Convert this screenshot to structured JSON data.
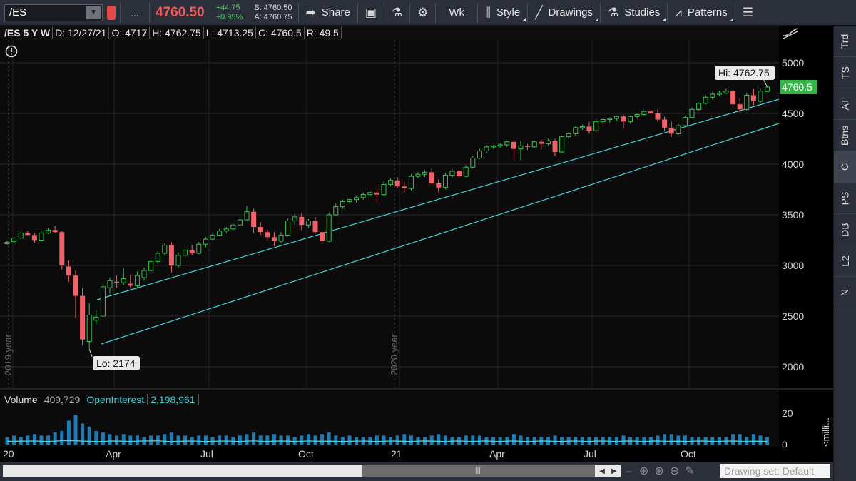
{
  "toolbar": {
    "symbol": "/ES",
    "more_label": "...",
    "last_price": "4760.50",
    "change": "+44.75",
    "change_pct": "+0.95%",
    "bid": "B: 4760.50",
    "ask": "A: 4760.75",
    "share_label": "Share",
    "timeframe_label": "Wk",
    "style_label": "Style",
    "drawings_label": "Drawings",
    "studies_label": "Studies",
    "patterns_label": "Patterns"
  },
  "header": {
    "symbol": "/ES 5 Y W",
    "date": "D: 12/27/21",
    "open": "O: 4717",
    "high": "H: 4762.75",
    "low": "L: 4713.25",
    "close": "C: 4760.5",
    "range": "R: 49.5"
  },
  "right_tabs": [
    "Trd",
    "TS",
    "AT",
    "Btns",
    "C",
    "PS",
    "DB",
    "L2",
    "N"
  ],
  "volume_header": {
    "volume_label": "Volume",
    "volume_value": "409,729",
    "oi_label": "OpenInterest",
    "oi_value": "2,198,961"
  },
  "bottom": {
    "drawing_set": "Drawing set: Default"
  },
  "colors": {
    "up": "#2fc74b",
    "down": "#f0616a",
    "channel": "#3fd0d8",
    "volume": "#1f7bb8",
    "oi_line": "#3fd0d8",
    "price_badge": "#36b44a"
  },
  "chart_data": {
    "type": "candlestick",
    "price_axis": {
      "ticks": [
        2000,
        2500,
        3000,
        3500,
        4000,
        4500,
        5000
      ],
      "range": [
        1900,
        5100
      ]
    },
    "x_labels": [
      "20",
      "Apr",
      "Jul",
      "Oct",
      "21",
      "Apr",
      "Jul",
      "Oct"
    ],
    "year_labels": [
      "2019 year",
      "2020 year"
    ],
    "annotations": {
      "high": "Hi: 4762.75",
      "low": "Lo: 2174",
      "last": "4760.5"
    },
    "volume_axis": {
      "ticks": [
        "20",
        "0"
      ],
      "unit": "<milli..."
    },
    "candles": [
      [
        3215,
        3245,
        3200,
        3230
      ],
      [
        3235,
        3280,
        3220,
        3270
      ],
      [
        3270,
        3335,
        3260,
        3320
      ],
      [
        3320,
        3340,
        3300,
        3300
      ],
      [
        3300,
        3320,
        3225,
        3250
      ],
      [
        3250,
        3335,
        3240,
        3320
      ],
      [
        3320,
        3370,
        3310,
        3350
      ],
      [
        3350,
        3390,
        3320,
        3330
      ],
      [
        3330,
        3340,
        2960,
        3000
      ],
      [
        2990,
        3050,
        2840,
        2900
      ],
      [
        2900,
        2950,
        2480,
        2700
      ],
      [
        2700,
        2780,
        2210,
        2270
      ],
      [
        2250,
        2630,
        2174,
        2510
      ],
      [
        2460,
        2560,
        2420,
        2490
      ],
      [
        2500,
        2840,
        2490,
        2790
      ],
      [
        2780,
        2880,
        2720,
        2850
      ],
      [
        2840,
        2900,
        2780,
        2830
      ],
      [
        2830,
        2970,
        2810,
        2870
      ],
      [
        2820,
        2910,
        2770,
        2800
      ],
      [
        2800,
        2940,
        2780,
        2900
      ],
      [
        2880,
        2980,
        2850,
        2950
      ],
      [
        2950,
        3060,
        2930,
        3040
      ],
      [
        3040,
        3140,
        3020,
        3120
      ],
      [
        3120,
        3220,
        3100,
        3200
      ],
      [
        3200,
        3230,
        2930,
        3000
      ],
      [
        3000,
        3130,
        2980,
        3100
      ],
      [
        3100,
        3180,
        3080,
        3150
      ],
      [
        3150,
        3200,
        3100,
        3120
      ],
      [
        3120,
        3230,
        3110,
        3210
      ],
      [
        3210,
        3280,
        3180,
        3260
      ],
      [
        3260,
        3320,
        3250,
        3300
      ],
      [
        3300,
        3360,
        3290,
        3340
      ],
      [
        3340,
        3380,
        3320,
        3360
      ],
      [
        3360,
        3420,
        3350,
        3400
      ],
      [
        3400,
        3460,
        3390,
        3450
      ],
      [
        3450,
        3590,
        3440,
        3530
      ],
      [
        3530,
        3560,
        3320,
        3380
      ],
      [
        3380,
        3430,
        3300,
        3330
      ],
      [
        3330,
        3360,
        3250,
        3280
      ],
      [
        3280,
        3330,
        3190,
        3240
      ],
      [
        3240,
        3330,
        3220,
        3300
      ],
      [
        3300,
        3460,
        3290,
        3440
      ],
      [
        3440,
        3510,
        3400,
        3480
      ],
      [
        3480,
        3520,
        3350,
        3400
      ],
      [
        3400,
        3460,
        3370,
        3440
      ],
      [
        3440,
        3480,
        3310,
        3330
      ],
      [
        3330,
        3350,
        3210,
        3240
      ],
      [
        3240,
        3520,
        3230,
        3500
      ],
      [
        3500,
        3610,
        3490,
        3580
      ],
      [
        3580,
        3650,
        3560,
        3630
      ],
      [
        3630,
        3660,
        3610,
        3650
      ],
      [
        3650,
        3690,
        3620,
        3670
      ],
      [
        3670,
        3720,
        3650,
        3700
      ],
      [
        3700,
        3740,
        3680,
        3720
      ],
      [
        3720,
        3780,
        3610,
        3700
      ],
      [
        3700,
        3830,
        3690,
        3800
      ],
      [
        3800,
        3860,
        3780,
        3840
      ],
      [
        3840,
        3870,
        3770,
        3780
      ],
      [
        3780,
        3830,
        3720,
        3760
      ],
      [
        3760,
        3900,
        3740,
        3880
      ],
      [
        3880,
        3920,
        3860,
        3900
      ],
      [
        3900,
        3940,
        3870,
        3920
      ],
      [
        3920,
        3960,
        3800,
        3810
      ],
      [
        3810,
        3850,
        3720,
        3770
      ],
      [
        3770,
        3910,
        3750,
        3890
      ],
      [
        3890,
        3950,
        3870,
        3930
      ],
      [
        3930,
        3970,
        3870,
        3880
      ],
      [
        3880,
        3990,
        3870,
        3970
      ],
      [
        3970,
        4080,
        3960,
        4060
      ],
      [
        4060,
        4150,
        4050,
        4130
      ],
      [
        4130,
        4190,
        4110,
        4170
      ],
      [
        4170,
        4190,
        4150,
        4180
      ],
      [
        4180,
        4210,
        4160,
        4190
      ],
      [
        4190,
        4230,
        4170,
        4220
      ],
      [
        4220,
        4240,
        4040,
        4150
      ],
      [
        4150,
        4230,
        4040,
        4180
      ],
      [
        4180,
        4200,
        4140,
        4170
      ],
      [
        4170,
        4230,
        4160,
        4220
      ],
      [
        4220,
        4240,
        4150,
        4200
      ],
      [
        4200,
        4250,
        4180,
        4230
      ],
      [
        4230,
        4250,
        4080,
        4120
      ],
      [
        4120,
        4280,
        4110,
        4270
      ],
      [
        4270,
        4320,
        4250,
        4300
      ],
      [
        4300,
        4380,
        4280,
        4360
      ],
      [
        4360,
        4390,
        4340,
        4370
      ],
      [
        4370,
        4420,
        4300,
        4330
      ],
      [
        4330,
        4440,
        4320,
        4420
      ],
      [
        4420,
        4450,
        4400,
        4440
      ],
      [
        4440,
        4460,
        4410,
        4450
      ],
      [
        4450,
        4480,
        4430,
        4470
      ],
      [
        4470,
        4490,
        4350,
        4420
      ],
      [
        4420,
        4480,
        4400,
        4470
      ],
      [
        4470,
        4500,
        4450,
        4490
      ],
      [
        4490,
        4530,
        4480,
        4520
      ],
      [
        4520,
        4540,
        4490,
        4500
      ],
      [
        4500,
        4540,
        4420,
        4440
      ],
      [
        4440,
        4470,
        4320,
        4360
      ],
      [
        4360,
        4420,
        4270,
        4300
      ],
      [
        4300,
        4400,
        4290,
        4380
      ],
      [
        4380,
        4480,
        4370,
        4460
      ],
      [
        4460,
        4560,
        4450,
        4540
      ],
      [
        4540,
        4610,
        4530,
        4600
      ],
      [
        4600,
        4680,
        4590,
        4660
      ],
      [
        4660,
        4710,
        4640,
        4690
      ],
      [
        4690,
        4720,
        4670,
        4700
      ],
      [
        4700,
        4740,
        4690,
        4720
      ],
      [
        4720,
        4740,
        4560,
        4590
      ],
      [
        4590,
        4650,
        4500,
        4540
      ],
      [
        4540,
        4700,
        4520,
        4680
      ],
      [
        4680,
        4740,
        4580,
        4620
      ],
      [
        4620,
        4740,
        4600,
        4720
      ],
      [
        4717,
        4762.75,
        4713.25,
        4760.5
      ]
    ],
    "volumes": [
      5,
      6,
      5,
      6,
      7,
      6,
      6,
      8,
      9,
      16,
      20,
      14,
      12,
      9,
      8,
      7,
      6,
      7,
      6,
      6,
      5,
      6,
      6,
      7,
      8,
      6,
      6,
      5,
      6,
      6,
      5,
      6,
      6,
      5,
      6,
      7,
      8,
      6,
      6,
      7,
      6,
      6,
      5,
      6,
      7,
      6,
      7,
      8,
      6,
      5,
      6,
      5,
      5,
      5,
      6,
      6,
      5,
      6,
      7,
      6,
      5,
      5,
      6,
      7,
      6,
      5,
      5,
      6,
      6,
      6,
      5,
      5,
      5,
      5,
      7,
      6,
      5,
      5,
      5,
      5,
      6,
      5,
      5,
      5,
      5,
      5,
      5,
      5,
      5,
      5,
      6,
      5,
      5,
      5,
      5,
      6,
      7,
      7,
      6,
      6,
      5,
      5,
      5,
      5,
      5,
      5,
      7,
      7,
      5,
      7,
      6,
      5
    ],
    "open_interest": [
      2.2,
      2.2,
      2.3,
      2.3,
      2.4,
      2.2,
      2.1,
      2.3,
      2.6,
      2.6,
      2.6,
      2.3,
      2.2,
      2.0,
      2.1,
      2.3,
      2.4,
      2.2,
      2.1,
      2.3,
      2.4,
      2.4,
      2.5,
      2.2,
      2.0,
      2.2,
      2.3,
      2.4,
      2.2,
      2.0,
      2.2,
      2.3,
      2.4,
      2.2,
      2.1,
      2.3,
      2.5,
      2.2,
      2.1,
      2.3,
      2.4,
      2.3,
      2.1,
      2.2,
      2.4,
      2.3,
      2.2,
      2.3,
      2.2,
      2.1,
      2.2,
      2.3,
      2.4,
      2.2,
      2.1,
      2.2,
      2.4,
      2.3,
      2.2,
      2.1,
      2.3,
      2.4,
      2.3,
      2.2,
      2.1,
      2.3,
      2.4,
      2.2,
      2.1,
      2.3,
      2.4,
      2.2,
      2.1,
      2.3,
      2.4,
      2.2,
      2.1,
      2.2,
      2.4,
      2.3,
      2.2,
      2.1,
      2.3,
      2.4,
      2.2,
      2.1,
      2.3,
      2.4,
      2.2,
      2.1,
      2.3,
      2.4,
      2.2,
      2.1,
      2.3,
      2.4,
      2.2,
      2.2,
      2.3,
      2.1,
      2.2,
      2.4,
      2.3,
      2.1,
      2.2,
      2.3,
      2.4,
      2.2,
      2.1,
      2.3,
      2.2,
      2.2
    ]
  }
}
